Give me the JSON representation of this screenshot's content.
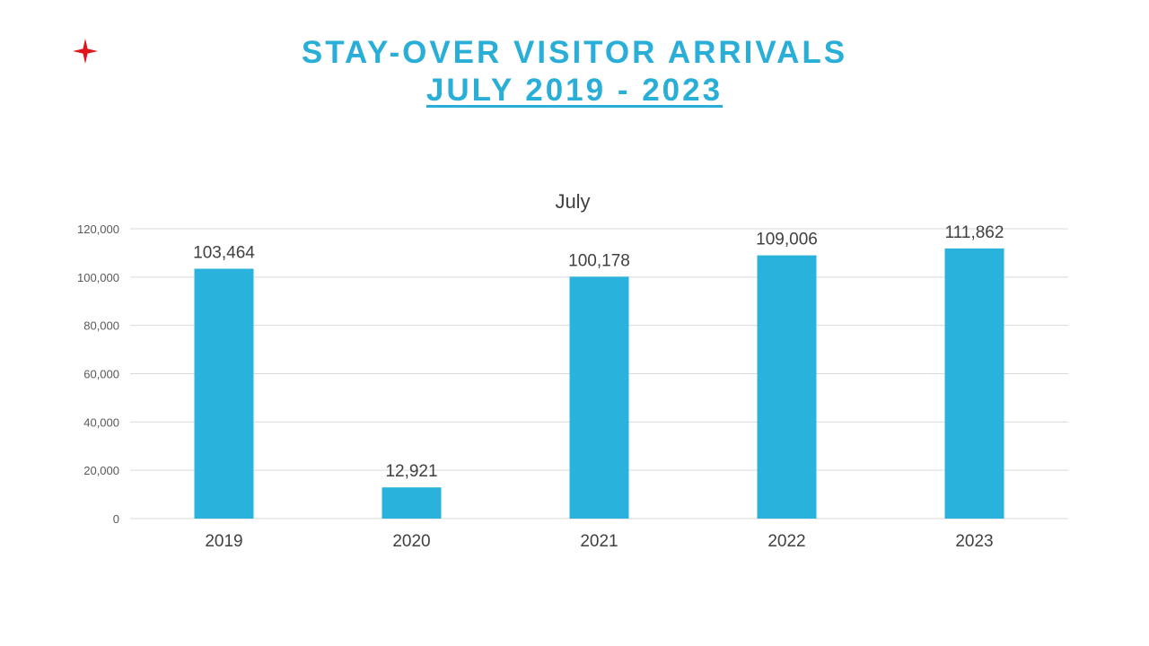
{
  "slide": {
    "title_line1": "STAY-OVER VISITOR ARRIVALS",
    "title_line2": "JULY 2019 - 2023"
  },
  "colors": {
    "title": "#29AED8",
    "bar": "#29B3DC",
    "logo_star": "#E3131B",
    "gridline": "#D9D9D9"
  },
  "logo": {
    "icon": "four-point-star-icon"
  },
  "chart_data": {
    "type": "bar",
    "title": "July",
    "categories": [
      "2019",
      "2020",
      "2021",
      "2022",
      "2023"
    ],
    "values": [
      103464,
      12921,
      100178,
      109006,
      111862
    ],
    "data_labels": [
      "103,464",
      "12,921",
      "100,178",
      "109,006",
      "111,862"
    ],
    "y_ticks": [
      "0",
      "20,000",
      "40,000",
      "60,000",
      "80,000",
      "100,000",
      "120,000"
    ],
    "y_tick_values": [
      0,
      20000,
      40000,
      60000,
      80000,
      100000,
      120000
    ],
    "ylim": [
      0,
      120000
    ],
    "xlabel": "",
    "ylabel": "",
    "grid": true,
    "legend": "none"
  }
}
